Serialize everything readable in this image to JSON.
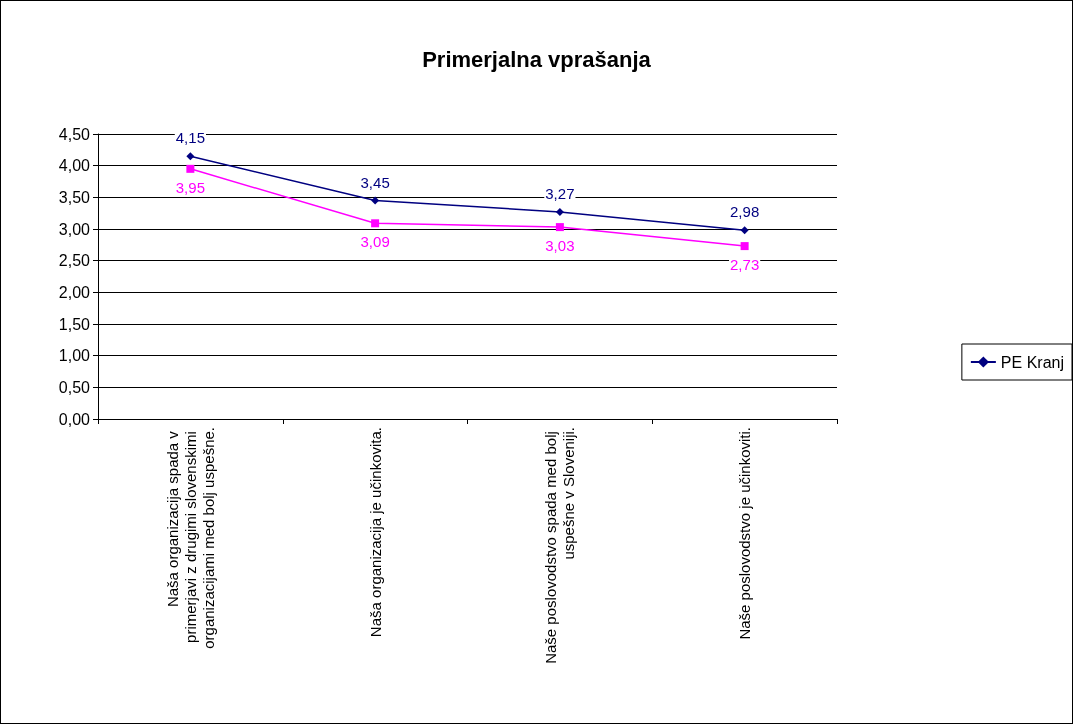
{
  "chart_data": {
    "type": "line",
    "title": "Primerjalna vprašanja",
    "categories": [
      "Naša organizacija spada v primerjavi z drugimi slovenskimi organizacijami med bolj uspešne.",
      "Naša organizacija je učinkovita.",
      "Naše poslovodstvo spada med bolj uspešne v Sloveniji.",
      "Naše poslovodstvo je učinkoviti."
    ],
    "series": [
      {
        "name": "PE Kranj",
        "color": "#000080",
        "marker": "diamond",
        "values": [
          4.15,
          3.45,
          3.27,
          2.98
        ],
        "value_labels": [
          "4,15",
          "3,45",
          "3,27",
          "2,98"
        ]
      },
      {
        "color": "#ff00ff",
        "marker": "square",
        "values": [
          3.95,
          3.09,
          3.03,
          2.73
        ],
        "value_labels": [
          "3,95",
          "3,09",
          "3,03",
          "2,73"
        ]
      }
    ],
    "ylim": [
      0,
      4.5
    ],
    "yticks": [
      {
        "value": 0,
        "label": "0,00"
      },
      {
        "value": 0.5,
        "label": "0,50"
      },
      {
        "value": 1,
        "label": "1,00"
      },
      {
        "value": 1.5,
        "label": "1,50"
      },
      {
        "value": 2,
        "label": "2,00"
      },
      {
        "value": 2.5,
        "label": "2,50"
      },
      {
        "value": 3,
        "label": "3,00"
      },
      {
        "value": 3.5,
        "label": "3,50"
      },
      {
        "value": 4,
        "label": "4,00"
      },
      {
        "value": 4.5,
        "label": "4,50"
      }
    ],
    "grid": "y",
    "legend": "right"
  }
}
